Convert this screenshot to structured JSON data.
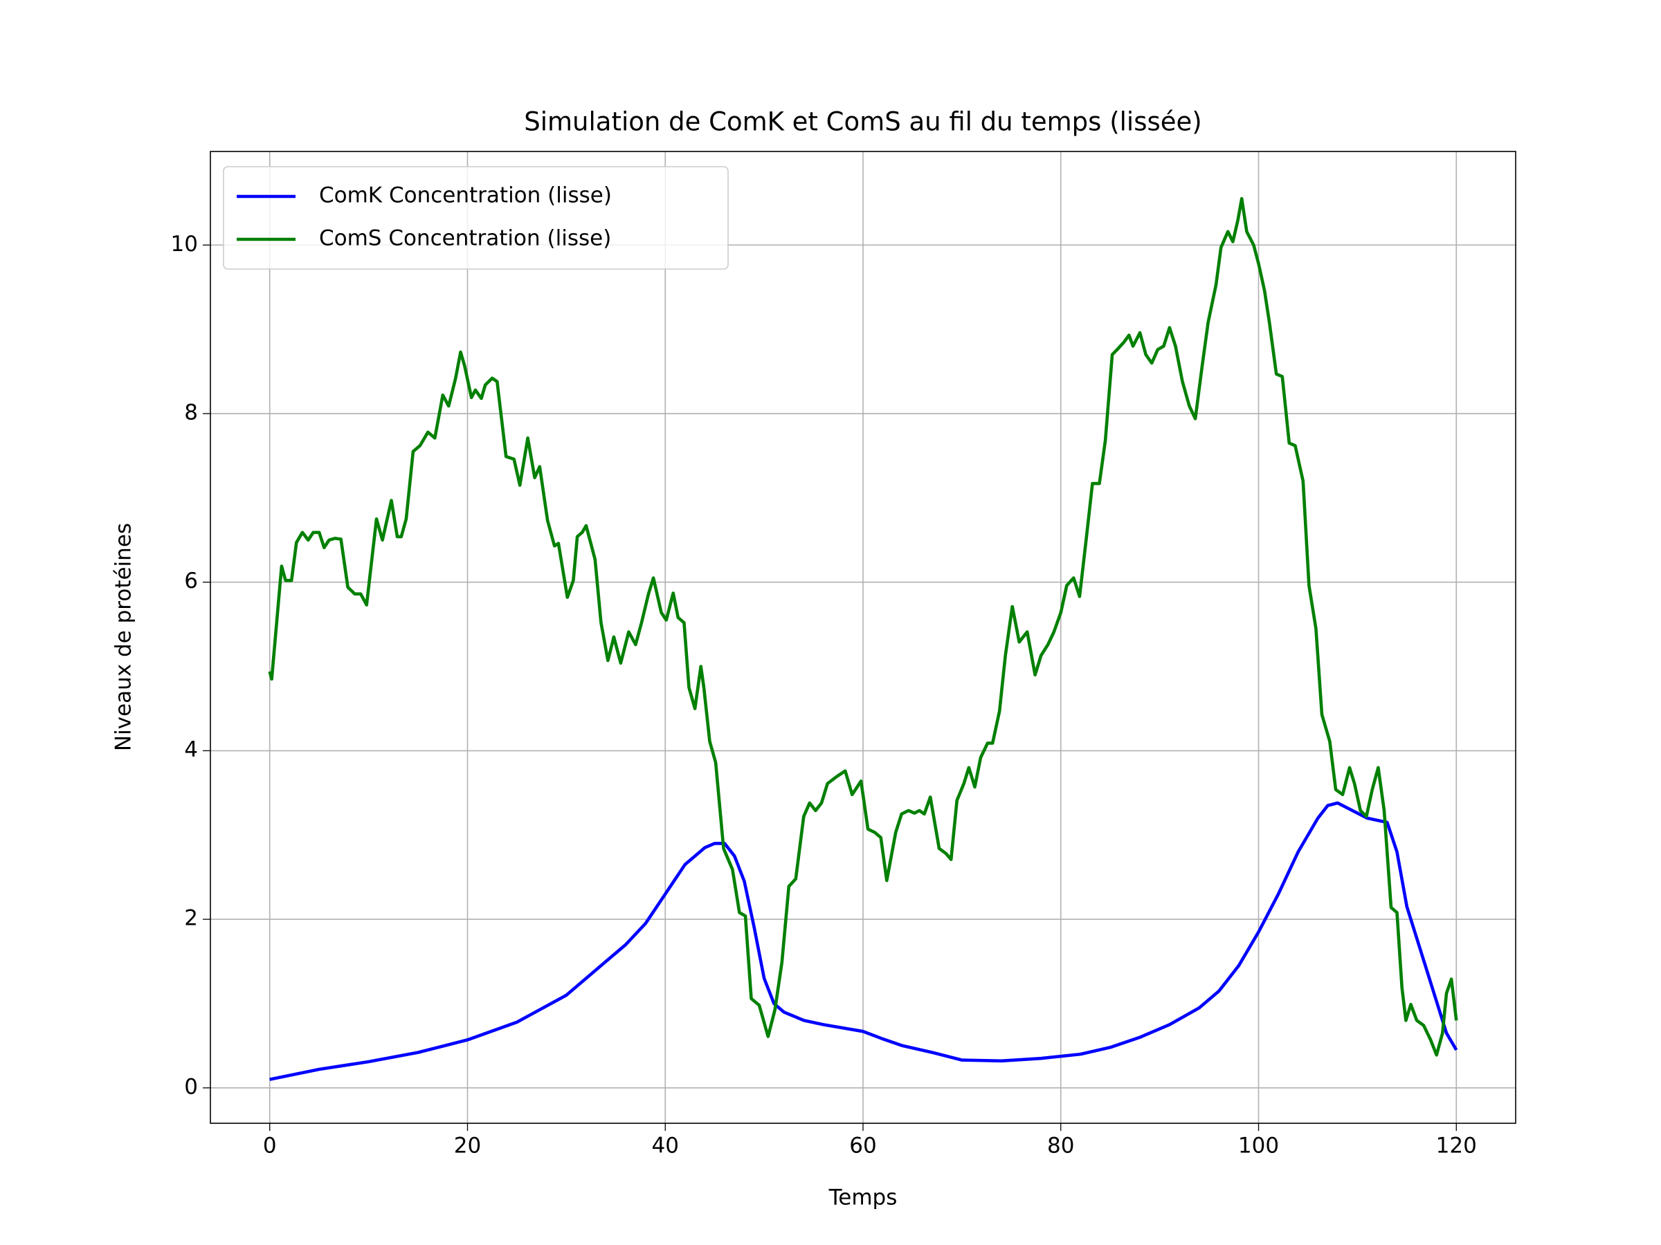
{
  "chart_data": {
    "type": "line",
    "title": "Simulation de ComK et ComS au fil du temps (lissée)",
    "x_label": "Temps",
    "y_label": "Niveaux de protéines",
    "xlim": [
      -6,
      126
    ],
    "ylim": [
      -0.42,
      11.11
    ],
    "xticks": [
      0,
      20,
      40,
      60,
      80,
      100,
      120
    ],
    "yticks": [
      0,
      2,
      4,
      6,
      8,
      10
    ],
    "grid": true,
    "legend": "upper left",
    "series": [
      {
        "name": "ComK Concentration (lisse)",
        "color": "#0000ff",
        "x": [
          0,
          5,
          10,
          15,
          20,
          25,
          30,
          33,
          36,
          38,
          40,
          42,
          43,
          44,
          45,
          46,
          47,
          48,
          49,
          50,
          51,
          52,
          54,
          56,
          60,
          62,
          64,
          67,
          70,
          74,
          78,
          82,
          85,
          88,
          91,
          94,
          96,
          98,
          100,
          102,
          104,
          106,
          107,
          108,
          109,
          111,
          113,
          114,
          115,
          117,
          119,
          120
        ],
        "values": [
          0.1,
          0.22,
          0.31,
          0.42,
          0.57,
          0.78,
          1.1,
          1.4,
          1.7,
          1.95,
          2.3,
          2.65,
          2.75,
          2.85,
          2.9,
          2.9,
          2.75,
          2.45,
          1.9,
          1.3,
          1.0,
          0.9,
          0.8,
          0.75,
          0.67,
          0.58,
          0.5,
          0.42,
          0.33,
          0.32,
          0.35,
          0.4,
          0.48,
          0.6,
          0.75,
          0.95,
          1.15,
          1.45,
          1.85,
          2.3,
          2.8,
          3.2,
          3.35,
          3.38,
          3.32,
          3.2,
          3.15,
          2.8,
          2.15,
          1.4,
          0.65,
          0.45
        ]
      },
      {
        "name": "ComS Concentration (lisse)",
        "color": "#008000",
        "x": [
          0,
          0.2,
          1.2,
          1.6,
          2.2,
          2.7,
          3.3,
          3.9,
          4.4,
          5.0,
          5.5,
          6.0,
          6.6,
          7.2,
          7.9,
          8.6,
          9.2,
          9.8,
          10.8,
          11.4,
          12.3,
          12.9,
          13.3,
          13.8,
          14.5,
          15.2,
          16.0,
          16.7,
          17.5,
          18.1,
          18.8,
          19.3,
          19.7,
          20.4,
          20.8,
          21.4,
          21.8,
          22.5,
          23.0,
          23.9,
          24.7,
          25.3,
          26.1,
          26.8,
          27.3,
          28.1,
          28.8,
          29.2,
          30.1,
          30.7,
          31.1,
          31.6,
          32.0,
          32.9,
          33.5,
          34.2,
          34.8,
          35.5,
          36.3,
          37.0,
          37.6,
          38.3,
          38.8,
          39.6,
          40.1,
          40.8,
          41.3,
          41.9,
          42.4,
          43.0,
          43.6,
          43.9,
          44.5,
          45.1,
          45.9,
          46.8,
          47.5,
          48.1,
          48.7,
          49.5,
          50.4,
          51.1,
          51.8,
          52.5,
          53.2,
          54.0,
          54.6,
          55.2,
          55.8,
          56.4,
          57.3,
          58.2,
          58.9,
          59.8,
          60.5,
          61.2,
          61.8,
          62.4,
          63.3,
          63.9,
          64.6,
          65.2,
          65.7,
          66.2,
          66.8,
          67.7,
          68.4,
          68.9,
          69.5,
          70.2,
          70.7,
          71.3,
          71.9,
          72.6,
          73.1,
          73.8,
          74.4,
          75.1,
          75.8,
          76.6,
          77.4,
          78.0,
          78.7,
          79.3,
          80.0,
          80.6,
          81.3,
          81.9,
          82.6,
          83.2,
          83.9,
          84.5,
          85.2,
          85.7,
          86.4,
          86.9,
          87.3,
          88.0,
          88.6,
          89.2,
          89.8,
          90.4,
          91.0,
          91.6,
          92.3,
          93.0,
          93.6,
          94.3,
          94.9,
          95.7,
          96.2,
          96.9,
          97.4,
          97.9,
          98.3,
          98.8,
          99.5,
          100.0,
          100.6,
          101.1,
          101.8,
          102.4,
          103.1,
          103.7,
          104.5,
          105.1,
          105.8,
          106.4,
          107.2,
          107.8,
          108.5,
          109.2,
          109.7,
          110.3,
          110.9,
          111.5,
          112.1,
          112.7,
          113.4,
          114.0,
          114.5,
          114.9,
          115.4,
          116.0,
          116.7,
          117.4,
          118.0,
          118.6,
          119.0,
          119.5,
          120.0
        ],
        "values": [
          4.94,
          4.85,
          6.19,
          6.02,
          6.02,
          6.47,
          6.59,
          6.5,
          6.59,
          6.59,
          6.41,
          6.5,
          6.52,
          6.51,
          5.94,
          5.86,
          5.86,
          5.73,
          6.75,
          6.5,
          6.97,
          6.54,
          6.54,
          6.75,
          7.55,
          7.62,
          7.78,
          7.71,
          8.22,
          8.09,
          8.42,
          8.73,
          8.57,
          8.19,
          8.28,
          8.18,
          8.34,
          8.42,
          8.38,
          7.49,
          7.46,
          7.15,
          7.71,
          7.24,
          7.37,
          6.73,
          6.43,
          6.46,
          5.82,
          6.02,
          6.54,
          6.59,
          6.67,
          6.27,
          5.52,
          5.07,
          5.35,
          5.04,
          5.41,
          5.26,
          5.52,
          5.86,
          6.05,
          5.64,
          5.55,
          5.87,
          5.58,
          5.52,
          4.75,
          4.5,
          5.0,
          4.75,
          4.11,
          3.86,
          2.84,
          2.59,
          2.08,
          2.04,
          1.06,
          0.98,
          0.61,
          0.93,
          1.49,
          2.39,
          2.48,
          3.22,
          3.38,
          3.29,
          3.38,
          3.61,
          3.69,
          3.76,
          3.48,
          3.64,
          3.07,
          3.03,
          2.97,
          2.46,
          3.03,
          3.25,
          3.29,
          3.26,
          3.29,
          3.25,
          3.45,
          2.84,
          2.78,
          2.71,
          3.41,
          3.61,
          3.8,
          3.57,
          3.92,
          4.09,
          4.09,
          4.47,
          5.13,
          5.71,
          5.29,
          5.41,
          4.9,
          5.13,
          5.26,
          5.41,
          5.64,
          5.96,
          6.05,
          5.83,
          6.54,
          7.17,
          7.17,
          7.68,
          8.7,
          8.76,
          8.85,
          8.93,
          8.8,
          8.96,
          8.7,
          8.6,
          8.76,
          8.8,
          9.02,
          8.8,
          8.38,
          8.09,
          7.94,
          8.57,
          9.08,
          9.53,
          9.97,
          10.16,
          10.04,
          10.29,
          10.55,
          10.16,
          10.0,
          9.78,
          9.46,
          9.08,
          8.47,
          8.44,
          7.65,
          7.62,
          7.2,
          5.96,
          5.45,
          4.43,
          4.11,
          3.54,
          3.48,
          3.8,
          3.61,
          3.29,
          3.22,
          3.54,
          3.8,
          3.29,
          2.14,
          2.08,
          1.19,
          0.8,
          0.99,
          0.8,
          0.74,
          0.57,
          0.39,
          0.65,
          1.12,
          1.29,
          0.8
        ]
      }
    ]
  }
}
